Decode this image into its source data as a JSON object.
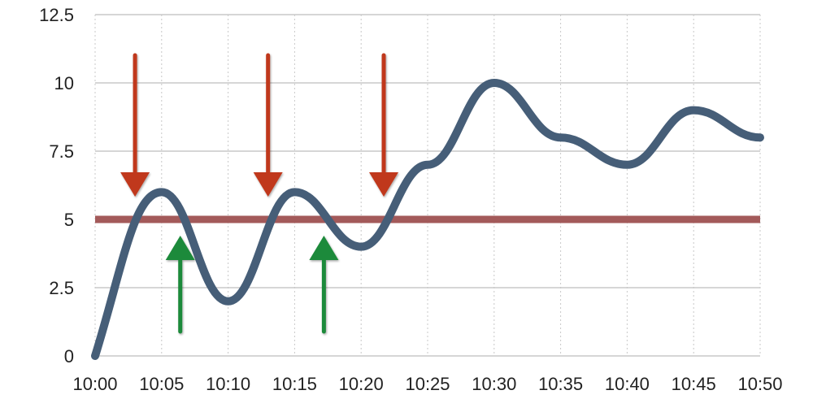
{
  "chart_data": {
    "type": "line",
    "x": [
      "10:00",
      "10:05",
      "10:10",
      "10:15",
      "10:20",
      "10:25",
      "10:30",
      "10:35",
      "10:40",
      "10:45",
      "10:50"
    ],
    "series": [
      {
        "values": [
          0,
          6,
          2,
          6,
          4,
          7,
          10,
          8,
          7,
          9,
          8
        ],
        "color": "#465e78"
      }
    ],
    "threshold": {
      "value": 5,
      "color": "#a35a5a"
    },
    "ylim": [
      0,
      12.5
    ],
    "y_ticks": [
      "0",
      "2.5",
      "5",
      "7.5",
      "10",
      "12.5"
    ],
    "x_ticks": [
      "10:00",
      "10:05",
      "10:10",
      "10:15",
      "10:20",
      "10:25",
      "10:30",
      "10:35",
      "10:40",
      "10:45",
      "10:50"
    ],
    "grid": true,
    "annotations": [
      {
        "kind": "down-arrow",
        "x_index": 3,
        "note": "red",
        "color": "#c0391b"
      },
      {
        "kind": "down-arrow",
        "x_index": 13,
        "note": "red",
        "color": "#c0391b"
      },
      {
        "kind": "down-arrow",
        "x_index": 21.7,
        "note": "red",
        "color": "#c0391b"
      },
      {
        "kind": "up-arrow",
        "x_index": 6.4,
        "note": "green",
        "color": "#1f8a3a"
      },
      {
        "kind": "up-arrow",
        "x_index": 17.2,
        "note": "green",
        "color": "#1f8a3a"
      }
    ]
  }
}
